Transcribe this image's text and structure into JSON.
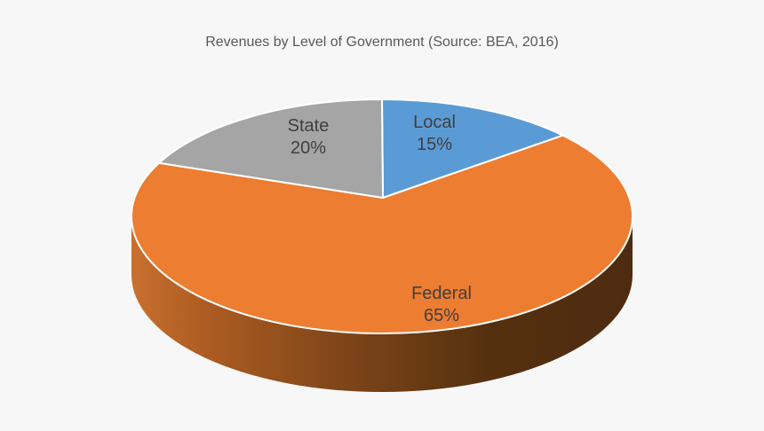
{
  "chart_data": {
    "type": "pie",
    "title": "Revenues by Level of Government (Source: BEA, 2016)",
    "effect": "3d",
    "start_angle_deg": 0,
    "direction": "clockwise",
    "slices": [
      {
        "label": "Local",
        "value": 15,
        "unit": "%",
        "color": "#5B9BD5"
      },
      {
        "label": "Federal",
        "value": 65,
        "unit": "%",
        "color": "#ED7D31"
      },
      {
        "label": "State",
        "value": 20,
        "unit": "%",
        "color": "#A5A5A5"
      }
    ],
    "data_labels": "category name and percentage shown inside slices",
    "legend": "none",
    "background_color": "#F7F7F7",
    "title_color": "#595959",
    "label_text_color": "#3F3F3F",
    "slice_border_color": "#FFFFFF",
    "side_shading_colors": [
      "#C8702F",
      "#4E2B10"
    ]
  }
}
